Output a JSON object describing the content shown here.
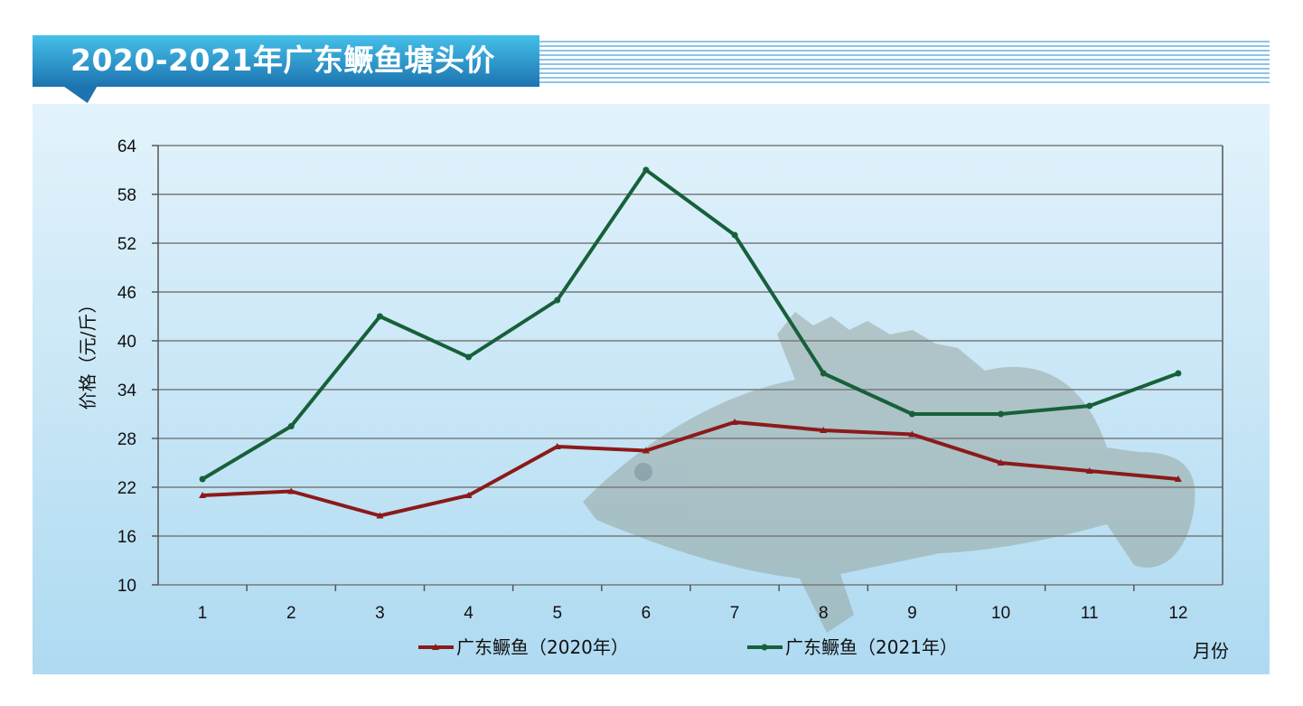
{
  "chart_data": {
    "type": "line",
    "title": "2020-2021年广东鳜鱼塘头价",
    "xlabel": "月份",
    "ylabel": "价格（元/斤）",
    "categories": [
      "1",
      "2",
      "3",
      "4",
      "5",
      "6",
      "7",
      "8",
      "9",
      "10",
      "11",
      "12"
    ],
    "ylim": [
      10,
      64
    ],
    "yticks": [
      10,
      16,
      22,
      28,
      34,
      40,
      46,
      52,
      58,
      64
    ],
    "grid": true,
    "legend_position": "bottom",
    "series": [
      {
        "name": "广东鳜鱼（2020年）",
        "color": "#8b1a1a",
        "marker": "triangle",
        "values": [
          21,
          21.5,
          18.5,
          21,
          27,
          26.5,
          30,
          29,
          28.5,
          25,
          24,
          23
        ]
      },
      {
        "name": "广东鳜鱼（2021年）",
        "color": "#17603a",
        "marker": "circle",
        "values": [
          23,
          29.5,
          43,
          38,
          45,
          61,
          53,
          36,
          31,
          31,
          32,
          36
        ]
      }
    ]
  }
}
